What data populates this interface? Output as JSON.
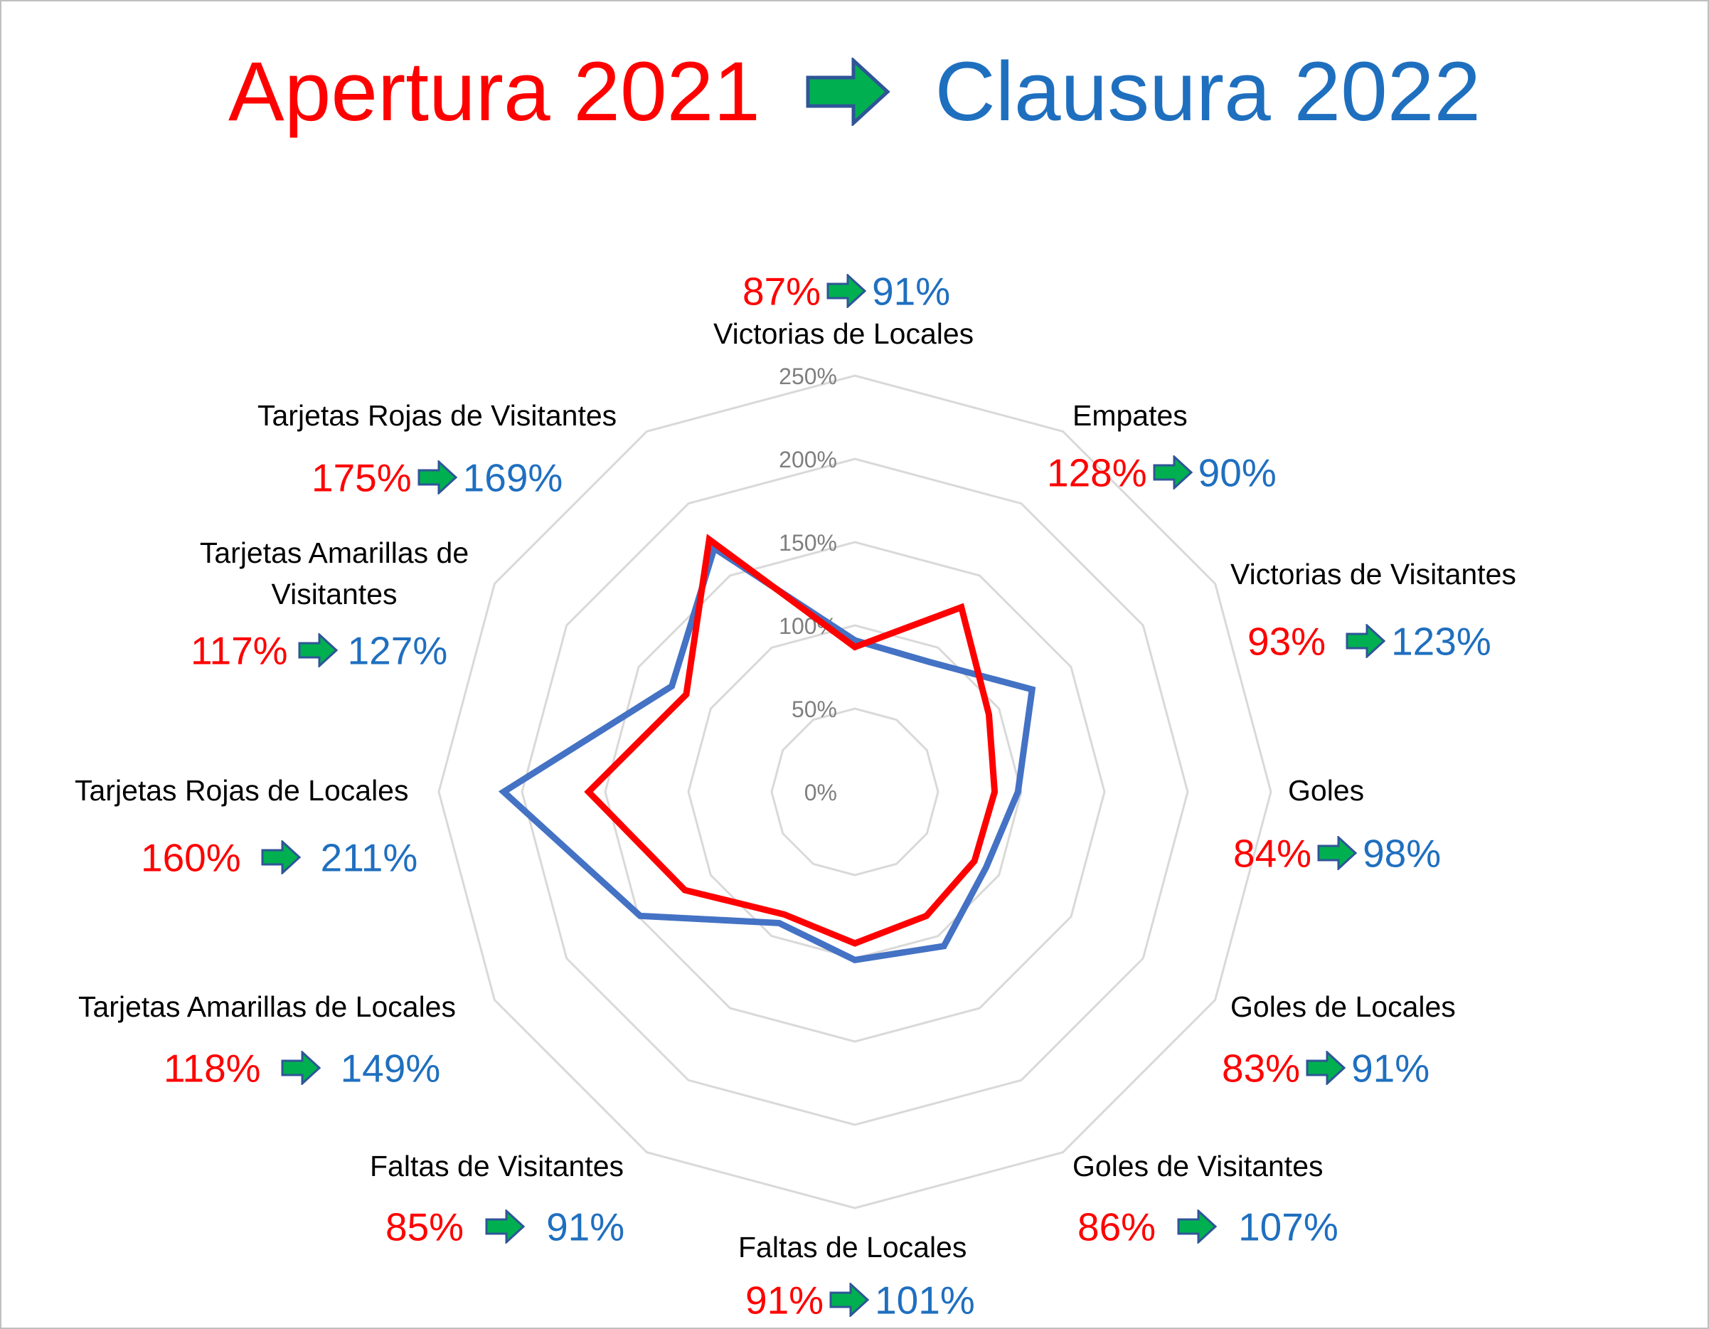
{
  "title": {
    "left": "Apertura 2021",
    "right": "Clausura 2022",
    "arrow_icon": "green-right-arrow"
  },
  "colors": {
    "apertura": "#ff0000",
    "clausura": "#1f6fbf",
    "clausura_line": "#4472c4",
    "arrow_fill": "#00b050",
    "arrow_stroke": "#2f5597",
    "grid": "#d9d9d9"
  },
  "chart_data": {
    "type": "radar",
    "title": "Apertura 2021 → Clausura 2022",
    "radial_ticks": [
      "0%",
      "50%",
      "100%",
      "150%",
      "200%",
      "250%"
    ],
    "rmax": 250,
    "grid": true,
    "categories": [
      "Victorias de Locales",
      "Empates",
      "Victorias de Visitantes",
      "Goles",
      "Goles de Locales",
      "Goles de Visitantes",
      "Faltas de Locales",
      "Faltas de Visitantes",
      "Tarjetas Amarillas de Locales",
      "Tarjetas Rojas de Locales",
      "Tarjetas Amarillas de Visitantes",
      "Tarjetas Rojas de Visitantes"
    ],
    "series": [
      {
        "name": "Apertura 2021",
        "values": [
          87,
          128,
          93,
          84,
          83,
          86,
          91,
          85,
          118,
          160,
          117,
          175
        ]
      },
      {
        "name": "Clausura 2022",
        "values": [
          91,
          90,
          123,
          98,
          91,
          107,
          101,
          91,
          149,
          211,
          127,
          169
        ]
      }
    ],
    "value_labels": [
      {
        "old": "87%",
        "new": "91%"
      },
      {
        "old": "128%",
        "new": "90%"
      },
      {
        "old": "93%",
        "new": "123%"
      },
      {
        "old": "84%",
        "new": "98%"
      },
      {
        "old": "83%",
        "new": "91%"
      },
      {
        "old": "86%",
        "new": "107%"
      },
      {
        "old": "91%",
        "new": "101%"
      },
      {
        "old": "85%",
        "new": "91%"
      },
      {
        "old": "118%",
        "new": "149%"
      },
      {
        "old": "160%",
        "new": "211%"
      },
      {
        "old": "117%",
        "new": "127%"
      },
      {
        "old": "175%",
        "new": "169%"
      }
    ]
  }
}
